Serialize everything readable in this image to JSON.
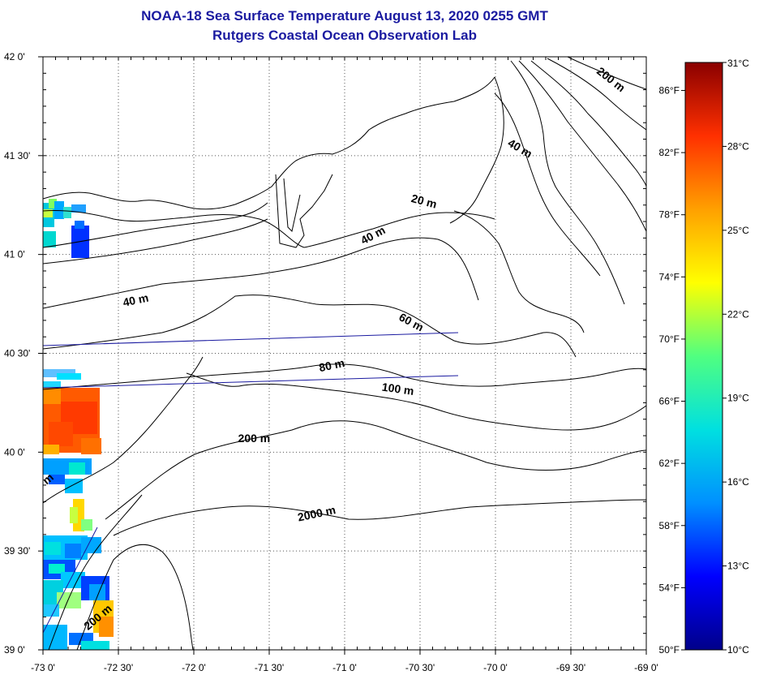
{
  "header": {
    "title": "NOAA-18 Sea Surface Temperature August 13, 2020 0255 GMT",
    "subtitle": "Rutgers Coastal Ocean Observation Lab"
  },
  "map": {
    "lon_range": [
      -73.0,
      -69.0
    ],
    "lat_range": [
      39.0,
      42.0
    ],
    "lon_ticks": [
      {
        "value": -73.0,
        "label": "-73 0'"
      },
      {
        "value": -72.5,
        "label": "-72 30'"
      },
      {
        "value": -72.0,
        "label": "-72 0'"
      },
      {
        "value": -71.5,
        "label": "-71 30'"
      },
      {
        "value": -71.0,
        "label": "-71 0'"
      },
      {
        "value": -70.5,
        "label": "-70 30'"
      },
      {
        "value": -70.0,
        "label": "-70 0'"
      },
      {
        "value": -69.5,
        "label": "-69 30'"
      },
      {
        "value": -69.0,
        "label": "-69 0'"
      }
    ],
    "lat_ticks": [
      {
        "value": 42.0,
        "label": "42 0'"
      },
      {
        "value": 41.5,
        "label": "41 30'"
      },
      {
        "value": 41.0,
        "label": "41 0'"
      },
      {
        "value": 40.5,
        "label": "40 30'"
      },
      {
        "value": 40.0,
        "label": "40 0'"
      },
      {
        "value": 39.5,
        "label": "39 30'"
      },
      {
        "value": 39.0,
        "label": "39 0'"
      }
    ],
    "grid": true,
    "contour_labels": [
      {
        "text": "200 m",
        "lon": -69.25,
        "lat": 41.87,
        "angle": 38
      },
      {
        "text": "40 m",
        "lon": -69.85,
        "lat": 41.52,
        "angle": 30
      },
      {
        "text": "20 m",
        "lon": -70.48,
        "lat": 41.25,
        "angle": 15
      },
      {
        "text": "40 m",
        "lon": -70.8,
        "lat": 41.08,
        "angle": -28
      },
      {
        "text": "40 m",
        "lon": -72.38,
        "lat": 40.75,
        "angle": -12
      },
      {
        "text": "60 m",
        "lon": -70.57,
        "lat": 40.64,
        "angle": 28
      },
      {
        "text": "80 m",
        "lon": -71.08,
        "lat": 40.42,
        "angle": -12
      },
      {
        "text": "100 m",
        "lon": -70.65,
        "lat": 40.3,
        "angle": 8
      },
      {
        "text": "200 m",
        "lon": -71.6,
        "lat": 40.05,
        "angle": 0
      },
      {
        "text": "2000 m",
        "lon": -71.18,
        "lat": 39.67,
        "angle": -12
      },
      {
        "text": "200 m",
        "lon": -72.62,
        "lat": 39.15,
        "angle": -40
      },
      {
        "text": "m",
        "lon": -72.95,
        "lat": 39.85,
        "angle": -40
      }
    ]
  },
  "colorbar": {
    "celsius_labels": [
      {
        "value": 31,
        "label": "31°C"
      },
      {
        "value": 28,
        "label": "28°C"
      },
      {
        "value": 25,
        "label": "25°C"
      },
      {
        "value": 22,
        "label": "22°C"
      },
      {
        "value": 19,
        "label": "19°C"
      },
      {
        "value": 16,
        "label": "16°C"
      },
      {
        "value": 13,
        "label": "13°C"
      },
      {
        "value": 10,
        "label": "10°C"
      }
    ],
    "fahrenheit_labels": [
      {
        "value": 86,
        "label": "86°F"
      },
      {
        "value": 82,
        "label": "82°F"
      },
      {
        "value": 78,
        "label": "78°F"
      },
      {
        "value": 74,
        "label": "74°F"
      },
      {
        "value": 70,
        "label": "70°F"
      },
      {
        "value": 66,
        "label": "66°F"
      },
      {
        "value": 62,
        "label": "62°F"
      },
      {
        "value": 58,
        "label": "58°F"
      },
      {
        "value": 54,
        "label": "54°F"
      },
      {
        "value": 50,
        "label": "50°F"
      }
    ],
    "range_c": [
      10,
      31
    ],
    "stops": [
      "#00008a",
      "#0000ff",
      "#0090ff",
      "#00e0e0",
      "#50ff80",
      "#ffff00",
      "#ffa000",
      "#ff3000",
      "#8a0000"
    ]
  },
  "colors": {
    "title": "#1a1aa0",
    "track_line": "#1a1aa0"
  }
}
